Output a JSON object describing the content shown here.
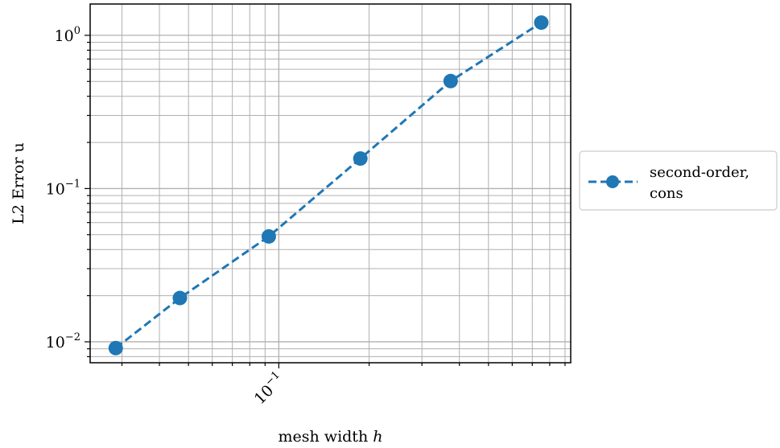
{
  "chart_data": {
    "type": "line",
    "xlabel": "mesh width",
    "xlabel_symbol": "h",
    "ylabel": "L2 Error u",
    "x_scale": "log",
    "y_scale": "log",
    "xlim": [
      0.0235,
      0.94
    ],
    "ylim": [
      0.0073,
      1.6
    ],
    "grid": true,
    "legend_position": "outside-right",
    "x_major_ticks": [
      0.1
    ],
    "y_major_ticks": [
      0.01,
      0.1,
      1
    ],
    "x_tick_labels": [
      {
        "base": "10",
        "exp": "−1"
      }
    ],
    "y_tick_labels": [
      {
        "base": "10",
        "exp": "−2"
      },
      {
        "base": "10",
        "exp": "−1"
      },
      {
        "base": "10",
        "exp": "0"
      }
    ],
    "series": [
      {
        "name": "second-order, cons",
        "legend_lines": [
          "second-order,",
          "cons"
        ],
        "color": "#1f77b4",
        "linestyle": "dashed",
        "marker": "circle",
        "x": [
          0.0286,
          0.0468,
          0.0926,
          0.187,
          0.374,
          0.75
        ],
        "y": [
          0.0091,
          0.0193,
          0.0487,
          0.157,
          0.503,
          1.21
        ]
      }
    ]
  }
}
